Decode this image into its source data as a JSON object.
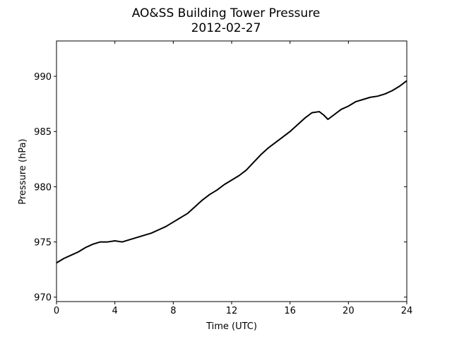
{
  "chart_data": {
    "type": "line",
    "title": "AO&SS Building Tower Pressure",
    "subtitle": "2012-02-27",
    "xlabel": "Time (UTC)",
    "ylabel": "Pressure (hPa)",
    "xlim": [
      0,
      24
    ],
    "ylim": [
      969.6,
      993.2
    ],
    "xticks": [
      0,
      4,
      8,
      12,
      16,
      20,
      24
    ],
    "yticks": [
      970,
      975,
      980,
      985,
      990
    ],
    "grid": false,
    "line_color": "#000000",
    "series": [
      {
        "x": [
          0,
          0.5,
          1,
          1.5,
          2,
          2.5,
          3,
          3.5,
          4,
          4.5,
          5,
          5.5,
          6,
          6.5,
          7,
          7.5,
          8,
          8.5,
          9,
          9.5,
          10,
          10.5,
          11,
          11.5,
          12,
          12.5,
          13,
          13.5,
          14,
          14.5,
          15,
          15.5,
          16,
          16.5,
          17,
          17.5,
          18,
          18.3,
          18.6,
          19,
          19.5,
          20,
          20.5,
          21,
          21.5,
          22,
          22.5,
          23,
          23.5,
          24
        ],
        "values": [
          973.1,
          973.5,
          973.8,
          974.1,
          974.5,
          974.8,
          975.0,
          975.0,
          975.1,
          975.0,
          975.2,
          975.4,
          975.6,
          975.8,
          976.1,
          976.4,
          976.8,
          977.2,
          977.6,
          978.2,
          978.8,
          979.3,
          979.7,
          980.2,
          980.6,
          981.0,
          981.5,
          982.2,
          982.9,
          983.5,
          984.0,
          984.5,
          985.0,
          985.6,
          986.2,
          986.7,
          986.8,
          986.5,
          986.1,
          986.5,
          987.0,
          987.3,
          987.7,
          987.9,
          988.1,
          988.2,
          988.4,
          988.7,
          989.1,
          989.6
        ]
      }
    ]
  }
}
